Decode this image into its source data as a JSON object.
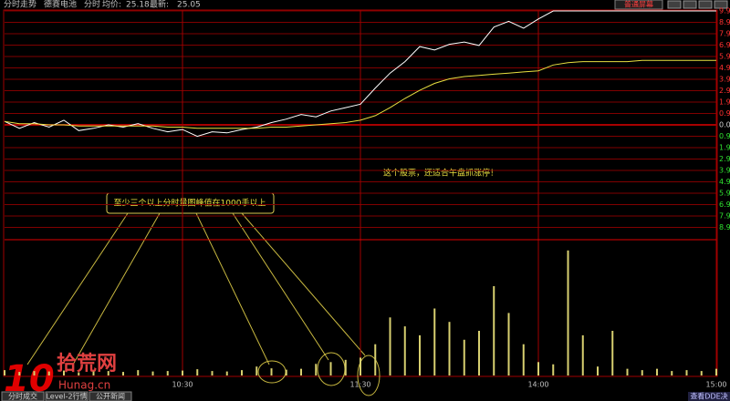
{
  "header": {
    "title": "分时走势",
    "stock": "德赛电池",
    "mode": "分时",
    "avg_label": "均价:",
    "avg": 25.18,
    "last_label": "最新:",
    "last": 25.05
  },
  "button": "普通屏幕",
  "annotations": {
    "note": "这个股票，还适合午盘抓涨停！",
    "box": "至少三个以上分时量图峰值在1000手以上"
  },
  "tabs": [
    "分时成交",
    "Level-2行情",
    "公开新闻"
  ],
  "corner": "查看DDE决",
  "watermark": {
    "logo": "10",
    "name": "拾荒网",
    "site": "Hunag.cn"
  },
  "chart_data": [
    {
      "type": "line",
      "x": [
        0,
        5,
        10,
        15,
        20,
        25,
        30,
        35,
        40,
        45,
        50,
        55,
        60,
        65,
        70,
        75,
        80,
        85,
        90,
        95,
        100,
        105,
        110,
        115,
        120,
        125,
        130,
        135,
        140,
        145,
        150,
        155,
        160,
        165,
        170,
        175,
        180,
        185,
        190,
        195,
        200,
        205,
        210,
        215,
        220,
        225,
        230,
        235,
        240
      ],
      "series": [
        {
          "color": "#ffffff",
          "values": [
            0.3,
            -0.3,
            0.2,
            -0.2,
            0.4,
            -0.5,
            -0.3,
            0,
            -0.2,
            0.1,
            -0.3,
            -0.6,
            -0.4,
            -1.0,
            -0.6,
            -0.7,
            -0.4,
            -0.2,
            0.2,
            0.5,
            0.9,
            0.7,
            1.2,
            1.5,
            1.8,
            3.2,
            4.5,
            5.5,
            6.8,
            6.5,
            7.0,
            7.2,
            6.9,
            8.5,
            9.0,
            8.4,
            9.2,
            9.9,
            9.9,
            9.9,
            9.9,
            9.9,
            9.9,
            9.9,
            9.9,
            9.9,
            9.9,
            9.9,
            9.9
          ]
        },
        {
          "color": "#e8e040",
          "values": [
            0.3,
            0.1,
            0.1,
            0,
            0,
            -0.1,
            -0.1,
            -0.1,
            -0.1,
            -0.1,
            -0.1,
            -0.2,
            -0.2,
            -0.3,
            -0.3,
            -0.3,
            -0.3,
            -0.3,
            -0.2,
            -0.2,
            -0.1,
            0,
            0.1,
            0.2,
            0.4,
            0.8,
            1.5,
            2.3,
            3.0,
            3.6,
            4.0,
            4.2,
            4.3,
            4.4,
            4.5,
            4.6,
            4.7,
            5.2,
            5.4,
            5.5,
            5.5,
            5.5,
            5.5,
            5.6,
            5.6,
            5.6,
            5.6,
            5.6,
            5.6
          ]
        }
      ],
      "xlim": [
        0,
        240
      ],
      "xticks": [
        {
          "value": 60,
          "label": "10:30"
        },
        {
          "value": 120,
          "label": "11:30"
        },
        {
          "value": 180,
          "label": "14:00"
        },
        {
          "value": 240,
          "label": "15:00"
        }
      ],
      "ylim": [
        -9.9,
        9.9
      ],
      "yticks": [
        9.9,
        8.91,
        7.92,
        6.93,
        5.94,
        4.95,
        3.96,
        2.97,
        1.98,
        0.99,
        {
          "value": 0,
          "label": "0.00"
        },
        {
          "value": -0.99,
          "label": "0.99"
        },
        {
          "value": -1.98,
          "label": "1.98"
        },
        {
          "value": -2.97,
          "label": "2.97"
        },
        {
          "value": -3.96,
          "label": "3.96"
        },
        {
          "value": -4.95,
          "label": "4.95"
        },
        {
          "value": -5.94,
          "label": "5.94"
        },
        {
          "value": -6.93,
          "label": "6.93"
        },
        {
          "value": -7.92,
          "label": "7.92"
        },
        {
          "value": -8.91,
          "label": "8.91"
        }
      ],
      "grid": true
    },
    {
      "type": "bar",
      "x": [
        0,
        5,
        10,
        15,
        20,
        25,
        30,
        35,
        40,
        45,
        50,
        55,
        60,
        65,
        70,
        75,
        80,
        85,
        90,
        95,
        100,
        105,
        110,
        115,
        120,
        125,
        130,
        135,
        140,
        145,
        150,
        155,
        160,
        165,
        170,
        175,
        180,
        185,
        190,
        195,
        200,
        205,
        210,
        215,
        220,
        225,
        230,
        235,
        240
      ],
      "values": [
        120,
        80,
        100,
        90,
        110,
        70,
        90,
        100,
        80,
        120,
        90,
        100,
        110,
        140,
        100,
        90,
        120,
        200,
        160,
        130,
        150,
        260,
        300,
        350,
        400,
        700,
        1300,
        1100,
        900,
        1500,
        1200,
        800,
        1000,
        2000,
        1400,
        700,
        300,
        250,
        2800,
        900,
        200,
        1000,
        150,
        120,
        150,
        100,
        120,
        100,
        150
      ],
      "color": "#d8d070",
      "xlim": [
        0,
        240
      ],
      "ylim": [
        0,
        3000
      ]
    }
  ]
}
